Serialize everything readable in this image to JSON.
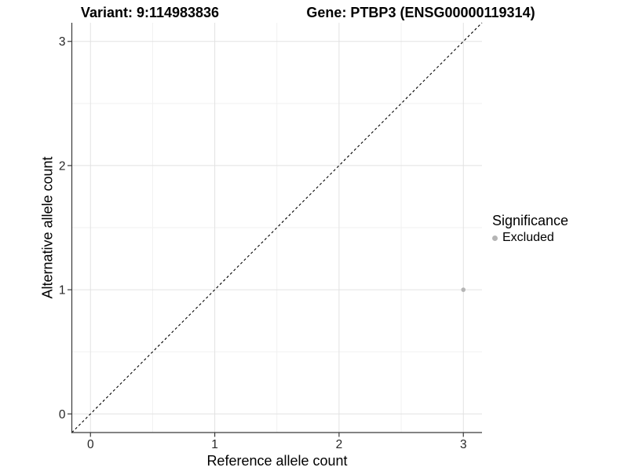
{
  "chart_data": {
    "type": "scatter",
    "title_left": "Variant: 9:114983836",
    "title_right": "Gene: PTBP3 (ENSG00000119314)",
    "xlabel": "Reference allele count",
    "ylabel": "Alternative allele count",
    "xlim": [
      -0.15,
      3.15
    ],
    "ylim": [
      -0.15,
      3.15
    ],
    "x_ticks": [
      0,
      1,
      2,
      3
    ],
    "y_ticks": [
      0,
      1,
      2,
      3
    ],
    "minor_ticks": [
      0.5,
      1.5,
      2.5
    ],
    "grid": true,
    "identity_line": {
      "slope": 1,
      "intercept": 0,
      "style": "dashed",
      "color": "#000000"
    },
    "series": [
      {
        "name": "Excluded",
        "color": "#b5b5b5",
        "points": [
          {
            "x": 3,
            "y": 1
          }
        ]
      }
    ],
    "legend": {
      "title": "Significance",
      "position": "right",
      "entries": [
        {
          "label": "Excluded",
          "color": "#b5b5b5"
        }
      ]
    },
    "colors": {
      "grid_major": "#e2e2e2",
      "grid_minor": "#f1f1f1",
      "axis_line": "#3a3a3a",
      "tick_label": "#262626",
      "background": "#ffffff"
    }
  }
}
